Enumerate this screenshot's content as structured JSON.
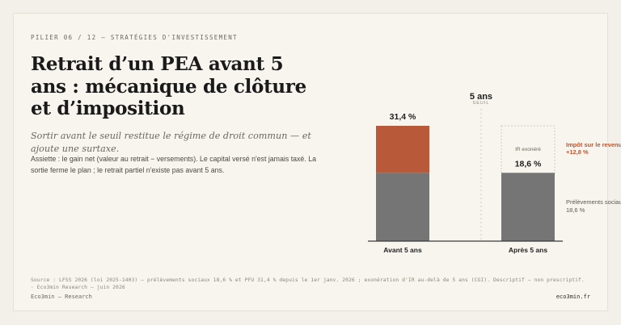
{
  "header": {
    "kicker": "PILIER 06 / 12 — STRATÉGIES D'INVESTISSEMENT",
    "title": "Retrait d’un PEA avant 5 ans : mécanique de clôture et d’imposition",
    "subtitle": "Sortir avant le seuil restitue le régime de droit commun — et ajoute une surtaxe.",
    "body": "Assiette : le gain net (valeur au retrait − versements). Le capital versé n'est jamais taxé. La sortie ferme le plan ; le retrait partiel n'existe pas avant 5 ans."
  },
  "chart_data": {
    "type": "bar",
    "stacked": true,
    "categories": [
      "Avant 5 ans",
      "Après 5 ans"
    ],
    "series": [
      {
        "name": "Prélèvements sociaux",
        "values": [
          18.6,
          18.6
        ],
        "color": "#757575",
        "legend_value": "18,6 %"
      },
      {
        "name": "Impôt sur le revenu",
        "values": [
          12.8,
          0
        ],
        "color": "#b85a3a",
        "legend_value": "+12,8 %"
      }
    ],
    "totals_labels": [
      "31,4 %",
      "18,6 %"
    ],
    "ylim": [
      0,
      31.4
    ],
    "annotations": {
      "threshold_label": "5 ans",
      "threshold_sublabel": "SEUIL",
      "exempt_label": "IR exonéré"
    },
    "colors": {
      "accent": "#c0552f",
      "social": "#757575",
      "ir": "#b85a3a"
    }
  },
  "footer": {
    "source": "Source : LFSS 2026 (loi 2025-1403) — prélèvements sociaux 18,6 % et PFU 31,4 % depuis le 1er janv. 2026 ; exonération d'IR au-delà de 5 ans (CGI). Descriptif — non prescriptif. · Eco3min Research — juin 2026",
    "brand": "Eco3min — Research",
    "site": "eco3min.fr"
  }
}
